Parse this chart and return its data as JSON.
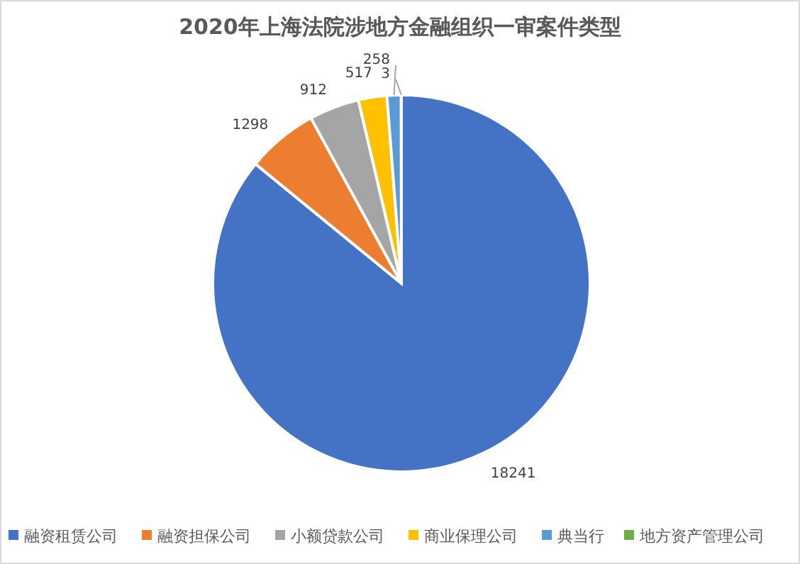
{
  "chart_data": {
    "type": "pie",
    "title": "2020年上海法院涉地方金融组织一审案件类型",
    "categories": [
      "融资租赁公司",
      "融资担保公司",
      "小额贷款公司",
      "商业保理公司",
      "典当行",
      "地方资产管理公司"
    ],
    "values": [
      18241,
      1298,
      912,
      517,
      258,
      3
    ],
    "colors": [
      "#4472c4",
      "#ed7d31",
      "#a5a5a5",
      "#ffc000",
      "#5b9bd5",
      "#70ad47"
    ],
    "data_labels": true,
    "legend": "bottom"
  }
}
